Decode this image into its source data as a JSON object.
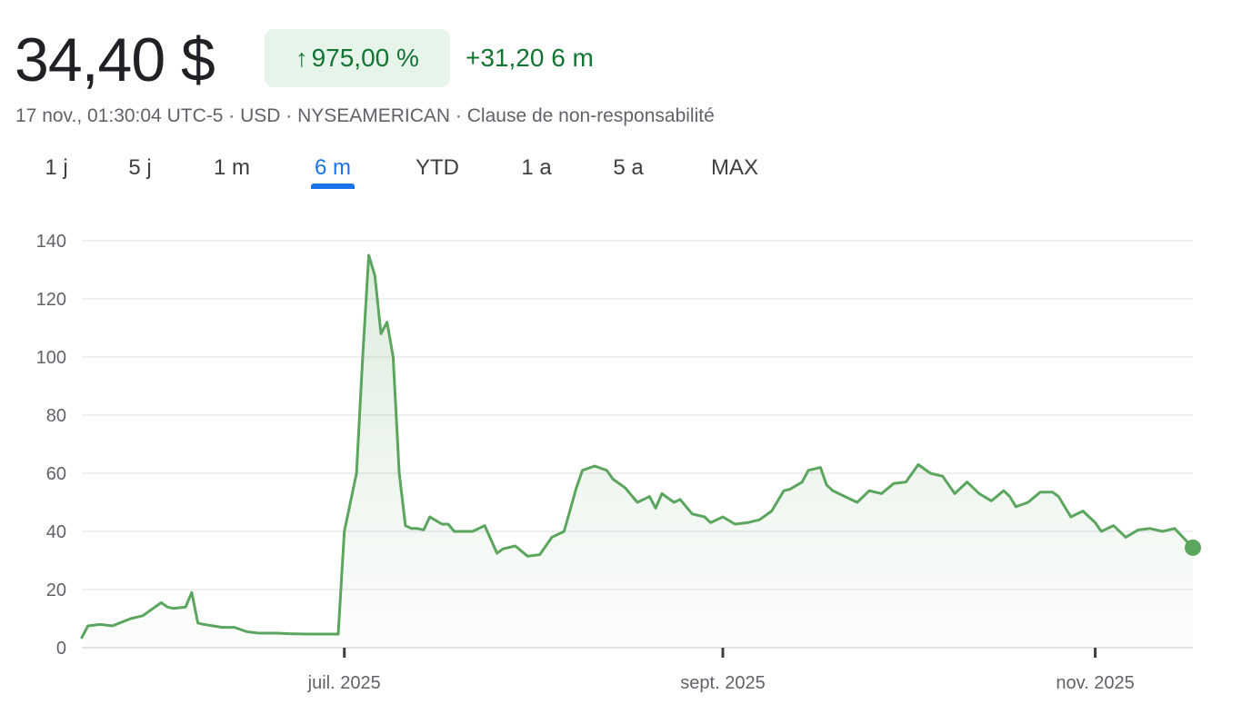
{
  "header": {
    "price": "34,40 $",
    "change_arrow": "↑",
    "change_percent": "975,00 %",
    "change_absolute": "+31,20 6 m",
    "meta": "17 nov., 01:30:04 UTC-5 · USD · NYSEAMERICAN · Clause de non-responsabilité"
  },
  "tabs": [
    {
      "label": "1 j"
    },
    {
      "label": "5 j"
    },
    {
      "label": "1 m"
    },
    {
      "label": "6 m",
      "active": true
    },
    {
      "label": "YTD"
    },
    {
      "label": "1 a"
    },
    {
      "label": "5 a"
    },
    {
      "label": "MAX"
    }
  ],
  "colors": {
    "positive": "#137333",
    "line": "#5ba55e",
    "active_tab": "#1a73e8",
    "grid": "#ebebeb"
  },
  "chart_data": {
    "type": "area",
    "title": "",
    "xlabel": "",
    "ylabel": "",
    "ylim": [
      0,
      140
    ],
    "yticks": [
      0,
      20,
      40,
      60,
      80,
      100,
      120,
      140
    ],
    "xticks": [
      {
        "date": "2025-07-01",
        "label": "juil. 2025"
      },
      {
        "date": "2025-09-01",
        "label": "sept. 2025"
      },
      {
        "date": "2025-11-01",
        "label": "nov. 2025"
      }
    ],
    "grid": true,
    "series": [
      {
        "x": [
          "2025-05-19",
          "2025-05-20",
          "2025-05-22",
          "2025-05-24",
          "2025-05-27",
          "2025-05-29",
          "2025-06-01",
          "2025-06-02",
          "2025-06-03",
          "2025-06-05",
          "2025-06-06",
          "2025-06-07",
          "2025-06-08",
          "2025-06-11",
          "2025-06-13",
          "2025-06-15",
          "2025-06-17",
          "2025-06-20",
          "2025-06-22",
          "2025-06-25",
          "2025-06-30",
          "2025-07-01",
          "2025-07-02",
          "2025-07-03",
          "2025-07-04",
          "2025-07-05",
          "2025-07-06",
          "2025-07-07",
          "2025-07-08",
          "2025-07-09",
          "2025-07-10",
          "2025-07-11",
          "2025-07-12",
          "2025-07-13",
          "2025-07-14",
          "2025-07-15",
          "2025-07-17",
          "2025-07-18",
          "2025-07-19",
          "2025-07-21",
          "2025-07-22",
          "2025-07-24",
          "2025-07-26",
          "2025-07-27",
          "2025-07-29",
          "2025-07-31",
          "2025-08-02",
          "2025-08-04",
          "2025-08-06",
          "2025-08-08",
          "2025-08-09",
          "2025-08-11",
          "2025-08-13",
          "2025-08-14",
          "2025-08-16",
          "2025-08-18",
          "2025-08-20",
          "2025-08-21",
          "2025-08-22",
          "2025-08-24",
          "2025-08-25",
          "2025-08-27",
          "2025-08-29",
          "2025-08-30",
          "2025-09-01",
          "2025-09-03",
          "2025-09-05",
          "2025-09-07",
          "2025-09-09",
          "2025-09-11",
          "2025-09-12",
          "2025-09-14",
          "2025-09-15",
          "2025-09-17",
          "2025-09-18",
          "2025-09-19",
          "2025-09-21",
          "2025-09-23",
          "2025-09-25",
          "2025-09-27",
          "2025-09-29",
          "2025-10-01",
          "2025-10-03",
          "2025-10-05",
          "2025-10-07",
          "2025-10-09",
          "2025-10-11",
          "2025-10-13",
          "2025-10-15",
          "2025-10-17",
          "2025-10-18",
          "2025-10-19",
          "2025-10-21",
          "2025-10-23",
          "2025-10-25",
          "2025-10-26",
          "2025-10-28",
          "2025-10-30",
          "2025-11-01",
          "2025-11-02",
          "2025-11-04",
          "2025-11-06",
          "2025-11-08",
          "2025-11-10",
          "2025-11-12",
          "2025-11-14",
          "2025-11-17"
        ],
        "y": [
          3.5,
          7.5,
          8,
          7.5,
          10,
          11,
          15.5,
          14,
          13.5,
          14,
          19,
          8.5,
          8,
          7,
          7,
          5.5,
          5,
          5,
          4.8,
          4.7,
          4.7,
          40,
          50,
          60,
          100,
          135,
          128,
          108,
          112,
          100,
          60,
          42,
          41,
          41,
          40.5,
          45,
          42.5,
          42.5,
          40,
          40,
          40,
          42,
          32.5,
          34,
          35,
          31.5,
          32,
          38,
          40,
          55,
          61,
          62.5,
          61,
          58,
          55,
          50,
          52,
          48,
          53,
          50,
          51,
          46,
          45,
          43,
          45,
          42.5,
          43,
          44,
          47,
          54,
          54.5,
          57,
          61,
          62,
          56,
          54,
          52,
          50,
          54,
          53,
          56.5,
          57,
          63,
          60,
          59,
          53,
          57,
          53,
          50.5,
          54,
          52,
          48.5,
          50,
          53.5,
          53.5,
          52,
          45,
          47,
          43,
          40,
          42,
          38,
          40.5,
          41,
          40,
          41,
          34.4
        ]
      }
    ]
  }
}
